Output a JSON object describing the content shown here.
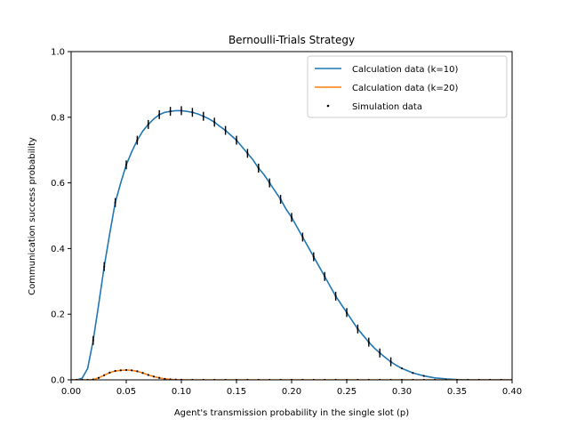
{
  "chart_data": {
    "type": "line",
    "title": "Bernoulli-Trials Strategy",
    "xlabel": "Agent's transmission probability in the single slot (p)",
    "ylabel": "Communication success probability",
    "xlim": [
      0.0,
      0.4
    ],
    "ylim": [
      0.0,
      1.0
    ],
    "xticks": [
      0.0,
      0.05,
      0.1,
      0.15,
      0.2,
      0.25,
      0.3,
      0.35,
      0.4
    ],
    "xtick_labels": [
      "0.00",
      "0.05",
      "0.10",
      "0.15",
      "0.20",
      "0.25",
      "0.30",
      "0.35",
      "0.40"
    ],
    "yticks": [
      0.0,
      0.2,
      0.4,
      0.6,
      0.8,
      1.0
    ],
    "ytick_labels": [
      "0.0",
      "0.2",
      "0.4",
      "0.6",
      "0.8",
      "1.0"
    ],
    "grid": false,
    "legend_position": "top-right",
    "series": [
      {
        "name": "Calculation data (k=10)",
        "color": "#1f77b4",
        "style": "line",
        "x": [
          0.0,
          0.005,
          0.01,
          0.015,
          0.02,
          0.025,
          0.03,
          0.035,
          0.04,
          0.045,
          0.05,
          0.055,
          0.06,
          0.065,
          0.07,
          0.075,
          0.08,
          0.085,
          0.09,
          0.095,
          0.1,
          0.105,
          0.11,
          0.115,
          0.12,
          0.125,
          0.13,
          0.135,
          0.14,
          0.145,
          0.15,
          0.155,
          0.16,
          0.165,
          0.17,
          0.175,
          0.18,
          0.185,
          0.19,
          0.195,
          0.2,
          0.205,
          0.21,
          0.215,
          0.22,
          0.225,
          0.23,
          0.235,
          0.24,
          0.245,
          0.25,
          0.255,
          0.26,
          0.265,
          0.27,
          0.275,
          0.28,
          0.285,
          0.29,
          0.295,
          0.3,
          0.31,
          0.32,
          0.33,
          0.34,
          0.35,
          0.36,
          0.38,
          0.4
        ],
        "y": [
          0.0,
          0.0,
          0.005,
          0.035,
          0.12,
          0.23,
          0.345,
          0.445,
          0.54,
          0.6,
          0.655,
          0.695,
          0.73,
          0.758,
          0.778,
          0.795,
          0.808,
          0.815,
          0.818,
          0.82,
          0.82,
          0.818,
          0.815,
          0.81,
          0.803,
          0.795,
          0.785,
          0.772,
          0.76,
          0.745,
          0.73,
          0.71,
          0.69,
          0.67,
          0.645,
          0.625,
          0.6,
          0.575,
          0.55,
          0.52,
          0.495,
          0.465,
          0.435,
          0.405,
          0.375,
          0.345,
          0.315,
          0.285,
          0.255,
          0.23,
          0.205,
          0.18,
          0.155,
          0.135,
          0.115,
          0.097,
          0.082,
          0.068,
          0.055,
          0.044,
          0.035,
          0.021,
          0.012,
          0.006,
          0.003,
          0.001,
          0.0,
          0.0,
          0.0
        ]
      },
      {
        "name": "Calculation data (k=20)",
        "color": "#ff7f0e",
        "style": "line",
        "x": [
          0.0,
          0.01,
          0.015,
          0.02,
          0.025,
          0.03,
          0.035,
          0.04,
          0.045,
          0.05,
          0.055,
          0.06,
          0.065,
          0.07,
          0.075,
          0.08,
          0.085,
          0.09,
          0.095,
          0.1,
          0.11,
          0.12,
          0.15,
          0.2,
          0.25,
          0.3,
          0.35,
          0.4
        ],
        "y": [
          0.0,
          0.0,
          0.0,
          0.001,
          0.006,
          0.014,
          0.022,
          0.027,
          0.029,
          0.03,
          0.029,
          0.026,
          0.021,
          0.015,
          0.01,
          0.006,
          0.003,
          0.0015,
          0.0007,
          0.0003,
          0.0,
          0.0,
          0.0,
          0.0,
          0.0,
          0.0,
          0.0,
          0.0
        ]
      },
      {
        "name": "Simulation data",
        "color": "#000000",
        "style": "points",
        "x": [
          0.02,
          0.03,
          0.04,
          0.05,
          0.06,
          0.07,
          0.08,
          0.09,
          0.1,
          0.11,
          0.12,
          0.13,
          0.14,
          0.15,
          0.16,
          0.17,
          0.18,
          0.19,
          0.2,
          0.21,
          0.22,
          0.23,
          0.24,
          0.25,
          0.26,
          0.27,
          0.28,
          0.29,
          0.3,
          0.31,
          0.32
        ],
        "y": [
          0.12,
          0.345,
          0.54,
          0.655,
          0.73,
          0.778,
          0.808,
          0.818,
          0.82,
          0.815,
          0.803,
          0.785,
          0.76,
          0.73,
          0.69,
          0.645,
          0.6,
          0.55,
          0.495,
          0.435,
          0.375,
          0.315,
          0.255,
          0.205,
          0.155,
          0.115,
          0.082,
          0.055,
          0.035,
          0.021,
          0.012
        ]
      },
      {
        "name": "",
        "color": "#000000",
        "style": "points",
        "x": [
          0.005,
          0.01,
          0.015,
          0.02,
          0.025,
          0.03,
          0.035,
          0.04,
          0.045,
          0.05,
          0.055,
          0.06,
          0.065,
          0.07,
          0.075,
          0.08,
          0.085,
          0.09,
          0.095,
          0.1,
          0.11,
          0.12,
          0.13,
          0.14,
          0.15,
          0.16,
          0.17,
          0.18,
          0.19,
          0.2,
          0.21,
          0.22,
          0.23,
          0.24,
          0.25,
          0.26,
          0.27,
          0.28,
          0.29,
          0.3,
          0.31,
          0.32,
          0.33,
          0.34,
          0.35,
          0.36,
          0.37,
          0.38,
          0.39,
          0.4
        ],
        "y": [
          0.0,
          0.0,
          0.0,
          0.001,
          0.006,
          0.014,
          0.022,
          0.027,
          0.029,
          0.03,
          0.029,
          0.026,
          0.021,
          0.015,
          0.01,
          0.006,
          0.003,
          0.0015,
          0.0007,
          0.0003,
          0.0,
          0.0,
          0.0,
          0.0,
          0.0,
          0.0,
          0.0,
          0.0,
          0.0,
          0.0,
          0.0,
          0.0,
          0.0,
          0.0,
          0.0,
          0.0,
          0.0,
          0.0,
          0.0,
          0.0,
          0.0,
          0.0,
          0.0,
          0.0,
          0.0,
          0.0,
          0.0,
          0.0,
          0.0,
          0.0
        ]
      }
    ],
    "legend": [
      {
        "label": "Calculation data (k=10)",
        "color": "#1f77b4",
        "marker": "line"
      },
      {
        "label": "Calculation data (k=20)",
        "color": "#ff7f0e",
        "marker": "line"
      },
      {
        "label": "Simulation data",
        "color": "#000000",
        "marker": "dot"
      }
    ]
  }
}
